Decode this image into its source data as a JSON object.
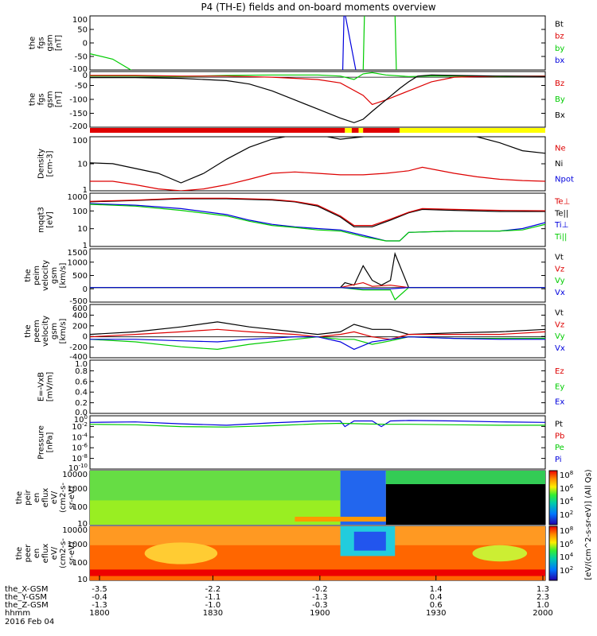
{
  "title": "P4 (TH-E) fields and on-board moments overview",
  "colors": {
    "black": "#000000",
    "red": "#dd0000",
    "green": "#00cc00",
    "blue": "#0000dd",
    "yellow": "#ffff00"
  },
  "chart_data": [
    {
      "type": "line",
      "id": "fgs-gsm-zoom",
      "ylabel": [
        "the",
        "fgs",
        "gsm",
        "[nT]"
      ],
      "yticks": [
        "100",
        "50",
        "0",
        "-50",
        "-100"
      ],
      "ylim": [
        -100,
        100
      ],
      "legend": [
        {
          "name": "Bt",
          "color": "black"
        },
        {
          "name": "bz",
          "color": "red"
        },
        {
          "name": "by",
          "color": "green"
        },
        {
          "name": "bx",
          "color": "blue"
        }
      ],
      "series": [
        {
          "name": "by",
          "color": "green",
          "x": [
            0,
            0.05,
            0.1
          ],
          "y": [
            -40,
            -60,
            -110
          ]
        },
        {
          "name": "bx",
          "color": "blue",
          "x": [
            0.555,
            0.558,
            0.56,
            0.585
          ],
          "y": [
            -110,
            110,
            110,
            -110
          ]
        },
        {
          "name": "by",
          "color": "green",
          "x": [
            0.6,
            0.603,
            0.67,
            0.673
          ],
          "y": [
            -110,
            110,
            110,
            -110
          ]
        }
      ]
    },
    {
      "type": "line",
      "id": "fgs-gsm",
      "ylabel": [
        "the",
        "fgs",
        "gsm",
        "[nT]"
      ],
      "yticks": [
        "0",
        "-50",
        "-100",
        "-150",
        "-200"
      ],
      "ylim": [
        -220,
        25
      ],
      "legend": [
        {
          "name": "Bz",
          "color": "red"
        },
        {
          "name": "By",
          "color": "green"
        },
        {
          "name": "Bx",
          "color": "black"
        }
      ],
      "series": [
        {
          "name": "By",
          "color": "green",
          "x": [
            0,
            0.1,
            0.2,
            0.3,
            0.4,
            0.5,
            0.55,
            0.58,
            0.6,
            0.62,
            0.65,
            0.7,
            0.75,
            0.8,
            0.9,
            1
          ],
          "y": [
            5,
            5,
            3,
            8,
            10,
            10,
            5,
            -10,
            15,
            20,
            10,
            3,
            5,
            5,
            3,
            5
          ]
        },
        {
          "name": "Bz",
          "color": "red",
          "x": [
            0,
            0.1,
            0.2,
            0.3,
            0.4,
            0.5,
            0.55,
            0.6,
            0.62,
            0.65,
            0.7,
            0.75,
            0.8,
            0.9,
            1
          ],
          "y": [
            8,
            8,
            5,
            5,
            0,
            -10,
            -25,
            -80,
            -120,
            -100,
            -60,
            -20,
            0,
            5,
            5
          ]
        },
        {
          "name": "Bx",
          "color": "black",
          "x": [
            0,
            0.1,
            0.2,
            0.3,
            0.35,
            0.4,
            0.45,
            0.5,
            0.55,
            0.58,
            0.6,
            0.62,
            0.65,
            0.68,
            0.7,
            0.72,
            0.75,
            0.8,
            0.9,
            1
          ],
          "y": [
            -2,
            -2,
            -5,
            -15,
            -30,
            -60,
            -100,
            -140,
            -180,
            -200,
            -185,
            -150,
            -100,
            -50,
            -20,
            5,
            10,
            8,
            5,
            3
          ]
        }
      ]
    },
    {
      "type": "line",
      "id": "density",
      "ylabel": [
        "Density",
        "[cm-3]"
      ],
      "yticks": [
        "100",
        "10",
        "1"
      ],
      "ylim": [
        0.4,
        200
      ],
      "log": true,
      "legend": [
        {
          "name": "Ne",
          "color": "red"
        },
        {
          "name": "Ni",
          "color": "black"
        },
        {
          "name": "Npot",
          "color": "blue"
        }
      ],
      "series": [
        {
          "name": "Ni",
          "color": "black",
          "x": [
            0,
            0.05,
            0.15,
            0.2,
            0.25,
            0.3,
            0.35,
            0.4,
            0.45,
            0.5,
            0.55,
            0.6,
            0.65,
            0.7,
            0.75,
            0.8,
            0.85,
            0.9,
            0.95,
            1
          ],
          "y": [
            10,
            9,
            3,
            1,
            3,
            15,
            60,
            150,
            250,
            250,
            150,
            200,
            250,
            250,
            250,
            250,
            200,
            100,
            40,
            30
          ]
        },
        {
          "name": "Ne",
          "color": "red",
          "x": [
            0,
            0.05,
            0.1,
            0.15,
            0.2,
            0.25,
            0.3,
            0.35,
            0.4,
            0.45,
            0.5,
            0.55,
            0.6,
            0.65,
            0.7,
            0.73,
            0.8,
            0.85,
            0.9,
            0.95,
            1
          ],
          "y": [
            1.2,
            1.2,
            0.8,
            0.5,
            0.4,
            0.5,
            0.8,
            1.5,
            3,
            3.5,
            3,
            2.5,
            2.5,
            3,
            4,
            6,
            3,
            2,
            1.5,
            1.3,
            1.2
          ]
        }
      ]
    },
    {
      "type": "line",
      "id": "mom-t3",
      "ylabel": [
        "mqqt3",
        "[eV]"
      ],
      "yticks": [
        "1000",
        "100",
        "10",
        "1"
      ],
      "ylim": [
        0.8,
        5000
      ],
      "log": true,
      "legend": [
        {
          "name": "Te⊥",
          "color": "red"
        },
        {
          "name": "Te||",
          "color": "black"
        },
        {
          "name": "Ti⊥",
          "color": "blue"
        },
        {
          "name": "Ti||",
          "color": "green"
        }
      ],
      "series": [
        {
          "name": "Te||",
          "color": "black",
          "x": [
            0,
            0.1,
            0.2,
            0.3,
            0.4,
            0.45,
            0.5,
            0.55,
            0.58,
            0.62,
            0.66,
            0.7,
            0.73,
            0.8,
            0.9,
            1
          ],
          "y": [
            1200,
            1500,
            2000,
            2000,
            1600,
            1200,
            600,
            100,
            20,
            20,
            60,
            200,
            350,
            300,
            250,
            250
          ]
        },
        {
          "name": "Te⊥",
          "color": "red",
          "x": [
            0,
            0.1,
            0.2,
            0.3,
            0.4,
            0.45,
            0.5,
            0.55,
            0.58,
            0.62,
            0.66,
            0.7,
            0.73,
            0.8,
            0.9,
            1
          ],
          "y": [
            1300,
            1600,
            2200,
            2200,
            1800,
            1300,
            700,
            120,
            25,
            25,
            70,
            220,
            400,
            350,
            300,
            280
          ]
        },
        {
          "name": "Ti⊥",
          "color": "blue",
          "x": [
            0,
            0.1,
            0.2,
            0.3,
            0.35,
            0.4,
            0.45,
            0.5,
            0.55,
            0.6,
            0.65,
            0.68,
            0.7,
            0.8,
            0.9,
            0.95,
            1
          ],
          "y": [
            900,
            700,
            400,
            150,
            60,
            30,
            20,
            15,
            12,
            5,
            2,
            2,
            8,
            10,
            10,
            15,
            40
          ]
        },
        {
          "name": "Ti||",
          "color": "green",
          "x": [
            0,
            0.1,
            0.2,
            0.3,
            0.35,
            0.4,
            0.45,
            0.5,
            0.55,
            0.6,
            0.65,
            0.68,
            0.7,
            0.8,
            0.9,
            0.95,
            1
          ],
          "y": [
            800,
            600,
            300,
            120,
            50,
            25,
            18,
            12,
            10,
            4,
            2,
            2,
            8,
            10,
            10,
            12,
            30
          ]
        }
      ]
    },
    {
      "type": "line",
      "id": "peim-velocity",
      "ylabel": [
        "the",
        "peim",
        "velocity",
        "gsm",
        "[km/s]"
      ],
      "yticks": [
        "1500",
        "1000",
        "500",
        "0",
        "-500"
      ],
      "ylim": [
        -600,
        1600
      ],
      "legend": [
        {
          "name": "Vt",
          "color": "black"
        },
        {
          "name": "Vz",
          "color": "red"
        },
        {
          "name": "Vy",
          "color": "green"
        },
        {
          "name": "Vx",
          "color": "blue"
        }
      ],
      "series": [
        {
          "name": "Vt",
          "color": "black",
          "x": [
            0,
            0.55,
            0.56,
            0.58,
            0.6,
            0.62,
            0.64,
            0.66,
            0.67,
            0.7,
            1
          ],
          "y": [
            0,
            0,
            200,
            100,
            900,
            300,
            100,
            300,
            1400,
            0,
            0
          ]
        },
        {
          "name": "Vz",
          "color": "red",
          "x": [
            0,
            0.55,
            0.6,
            0.62,
            0.66,
            0.7,
            1
          ],
          "y": [
            0,
            0,
            200,
            50,
            100,
            0,
            0
          ]
        },
        {
          "name": "Vy",
          "color": "green",
          "x": [
            0,
            0.55,
            0.6,
            0.66,
            0.67,
            0.7,
            1
          ],
          "y": [
            0,
            0,
            -100,
            -100,
            -500,
            0,
            0
          ]
        },
        {
          "name": "Vx",
          "color": "blue",
          "x": [
            0,
            0.55,
            0.6,
            0.66,
            0.7,
            1
          ],
          "y": [
            0,
            0,
            -50,
            -50,
            0,
            0
          ]
        }
      ]
    },
    {
      "type": "line",
      "id": "peem-velocity",
      "ylabel": [
        "the",
        "peem",
        "velocity",
        "gsm",
        "[km/s]"
      ],
      "yticks": [
        "600",
        "400",
        "200",
        "0",
        "-200",
        "-400"
      ],
      "ylim": [
        -420,
        650
      ],
      "legend": [
        {
          "name": "Vt",
          "color": "black"
        },
        {
          "name": "Vz",
          "color": "red"
        },
        {
          "name": "Vy",
          "color": "green"
        },
        {
          "name": "Vx",
          "color": "blue"
        }
      ],
      "series": [
        {
          "name": "Vt",
          "color": "black",
          "x": [
            0,
            0.1,
            0.2,
            0.28,
            0.35,
            0.45,
            0.5,
            0.55,
            0.58,
            0.62,
            0.66,
            0.7,
            0.8,
            0.9,
            1
          ],
          "y": [
            50,
            100,
            200,
            300,
            200,
            100,
            50,
            100,
            250,
            150,
            150,
            50,
            80,
            100,
            150
          ]
        },
        {
          "name": "Vz",
          "color": "red",
          "x": [
            0,
            0.1,
            0.2,
            0.28,
            0.35,
            0.45,
            0.5,
            0.55,
            0.58,
            0.62,
            0.66,
            0.7,
            0.8,
            0.9,
            1
          ],
          "y": [
            0,
            50,
            100,
            150,
            100,
            50,
            0,
            50,
            100,
            0,
            -50,
            50,
            50,
            50,
            100
          ]
        },
        {
          "name": "Vy",
          "color": "green",
          "x": [
            0,
            0.1,
            0.2,
            0.28,
            0.35,
            0.45,
            0.5,
            0.55,
            0.58,
            0.62,
            0.66,
            0.7,
            0.8,
            0.9,
            1
          ],
          "y": [
            -50,
            -100,
            -200,
            -250,
            -150,
            -50,
            0,
            -50,
            -50,
            -150,
            -80,
            0,
            -30,
            -30,
            -30
          ]
        },
        {
          "name": "Vx",
          "color": "blue",
          "x": [
            0,
            0.1,
            0.2,
            0.28,
            0.35,
            0.45,
            0.5,
            0.55,
            0.58,
            0.62,
            0.66,
            0.7,
            0.8,
            0.9,
            1
          ],
          "y": [
            -50,
            -50,
            -80,
            -100,
            -50,
            0,
            0,
            -100,
            -250,
            -100,
            -50,
            0,
            -30,
            -50,
            -50
          ]
        }
      ]
    },
    {
      "type": "line",
      "id": "efield",
      "ylabel": [
        "E=-VxB",
        "[mV/m]"
      ],
      "yticks": [
        "1.0",
        "0.8",
        "0.6",
        "0.4",
        "0.2",
        "0.0"
      ],
      "ylim": [
        0,
        1
      ],
      "legend": [
        {
          "name": "Ez",
          "color": "red"
        },
        {
          "name": "Ey",
          "color": "green"
        },
        {
          "name": "Ex",
          "color": "blue"
        }
      ],
      "series": []
    },
    {
      "type": "line",
      "id": "pressure",
      "ylabel": [
        "Pressure",
        "[nPa]"
      ],
      "yticks": [
        "10^0",
        "10^-2",
        "10^-4",
        "10^-6",
        "10^-8",
        "10^-10"
      ],
      "ylim": [
        -10.5,
        0.8
      ],
      "log": true,
      "legend": [
        {
          "name": "Pt",
          "color": "black"
        },
        {
          "name": "Pb",
          "color": "red"
        },
        {
          "name": "Pe",
          "color": "green"
        },
        {
          "name": "Pi",
          "color": "blue"
        }
      ],
      "series": [
        {
          "name": "Pi",
          "color": "blue",
          "x": [
            0,
            0.1,
            0.2,
            0.3,
            0.4,
            0.5,
            0.55,
            0.56,
            0.58,
            0.62,
            0.64,
            0.66,
            0.7,
            0.8,
            0.9,
            1
          ],
          "y": [
            -0.6,
            -0.5,
            -0.9,
            -1.2,
            -0.7,
            -0.3,
            -0.3,
            -1.5,
            -0.3,
            -0.3,
            -1.5,
            -0.3,
            -0.2,
            -0.3,
            -0.5,
            -0.6
          ]
        },
        {
          "name": "Pe",
          "color": "green",
          "x": [
            0,
            0.1,
            0.2,
            0.3,
            0.4,
            0.5,
            0.55,
            0.6,
            0.65,
            0.7,
            0.8,
            0.9,
            1
          ],
          "y": [
            -1.0,
            -1.1,
            -1.5,
            -1.6,
            -1.3,
            -0.9,
            -0.8,
            -0.9,
            -1.0,
            -1.0,
            -1.1,
            -1.2,
            -1.2
          ]
        }
      ]
    },
    {
      "type": "heatmap",
      "id": "peir-en-eflux",
      "ylabel": [
        "the",
        "peir",
        "en",
        "eflux",
        "eV/",
        "(cm2-s-",
        "sr-eV)"
      ],
      "yticks": [
        "10000",
        "1000",
        "100",
        "10"
      ]
    },
    {
      "type": "heatmap",
      "id": "peer-en-eflux",
      "ylabel": [
        "the",
        "peer",
        "en",
        "eflux",
        "eV/",
        "(cm2-s-",
        "sr-eV)"
      ],
      "yticks": [
        "10000",
        "1000",
        "100",
        "10"
      ]
    }
  ],
  "colorbar": {
    "ticks": [
      "10^8",
      "10^6",
      "10^4",
      "10^2",
      "10^8",
      "10^6",
      "10^4",
      "10^2"
    ],
    "label": "[eV/(cm^2-s-sr-eV)] (All Qs)"
  },
  "xaxis": {
    "rows": [
      {
        "label": "the_X-GSM",
        "values": [
          "-3.5",
          "-2.2",
          "-0.2",
          "1.4",
          "1.3"
        ]
      },
      {
        "label": "the_Y-GSM",
        "values": [
          "-0.4",
          "-1.1",
          "-1.3",
          "0.4",
          "2.3"
        ]
      },
      {
        "label": "the_Z-GSM",
        "values": [
          "-1.3",
          "-1.0",
          "-0.3",
          "0.6",
          "1.0"
        ]
      },
      {
        "label": "hhmm",
        "values": [
          "1800",
          "1830",
          "1900",
          "1930",
          "2000"
        ]
      }
    ],
    "date": "2016 Feb 04"
  }
}
